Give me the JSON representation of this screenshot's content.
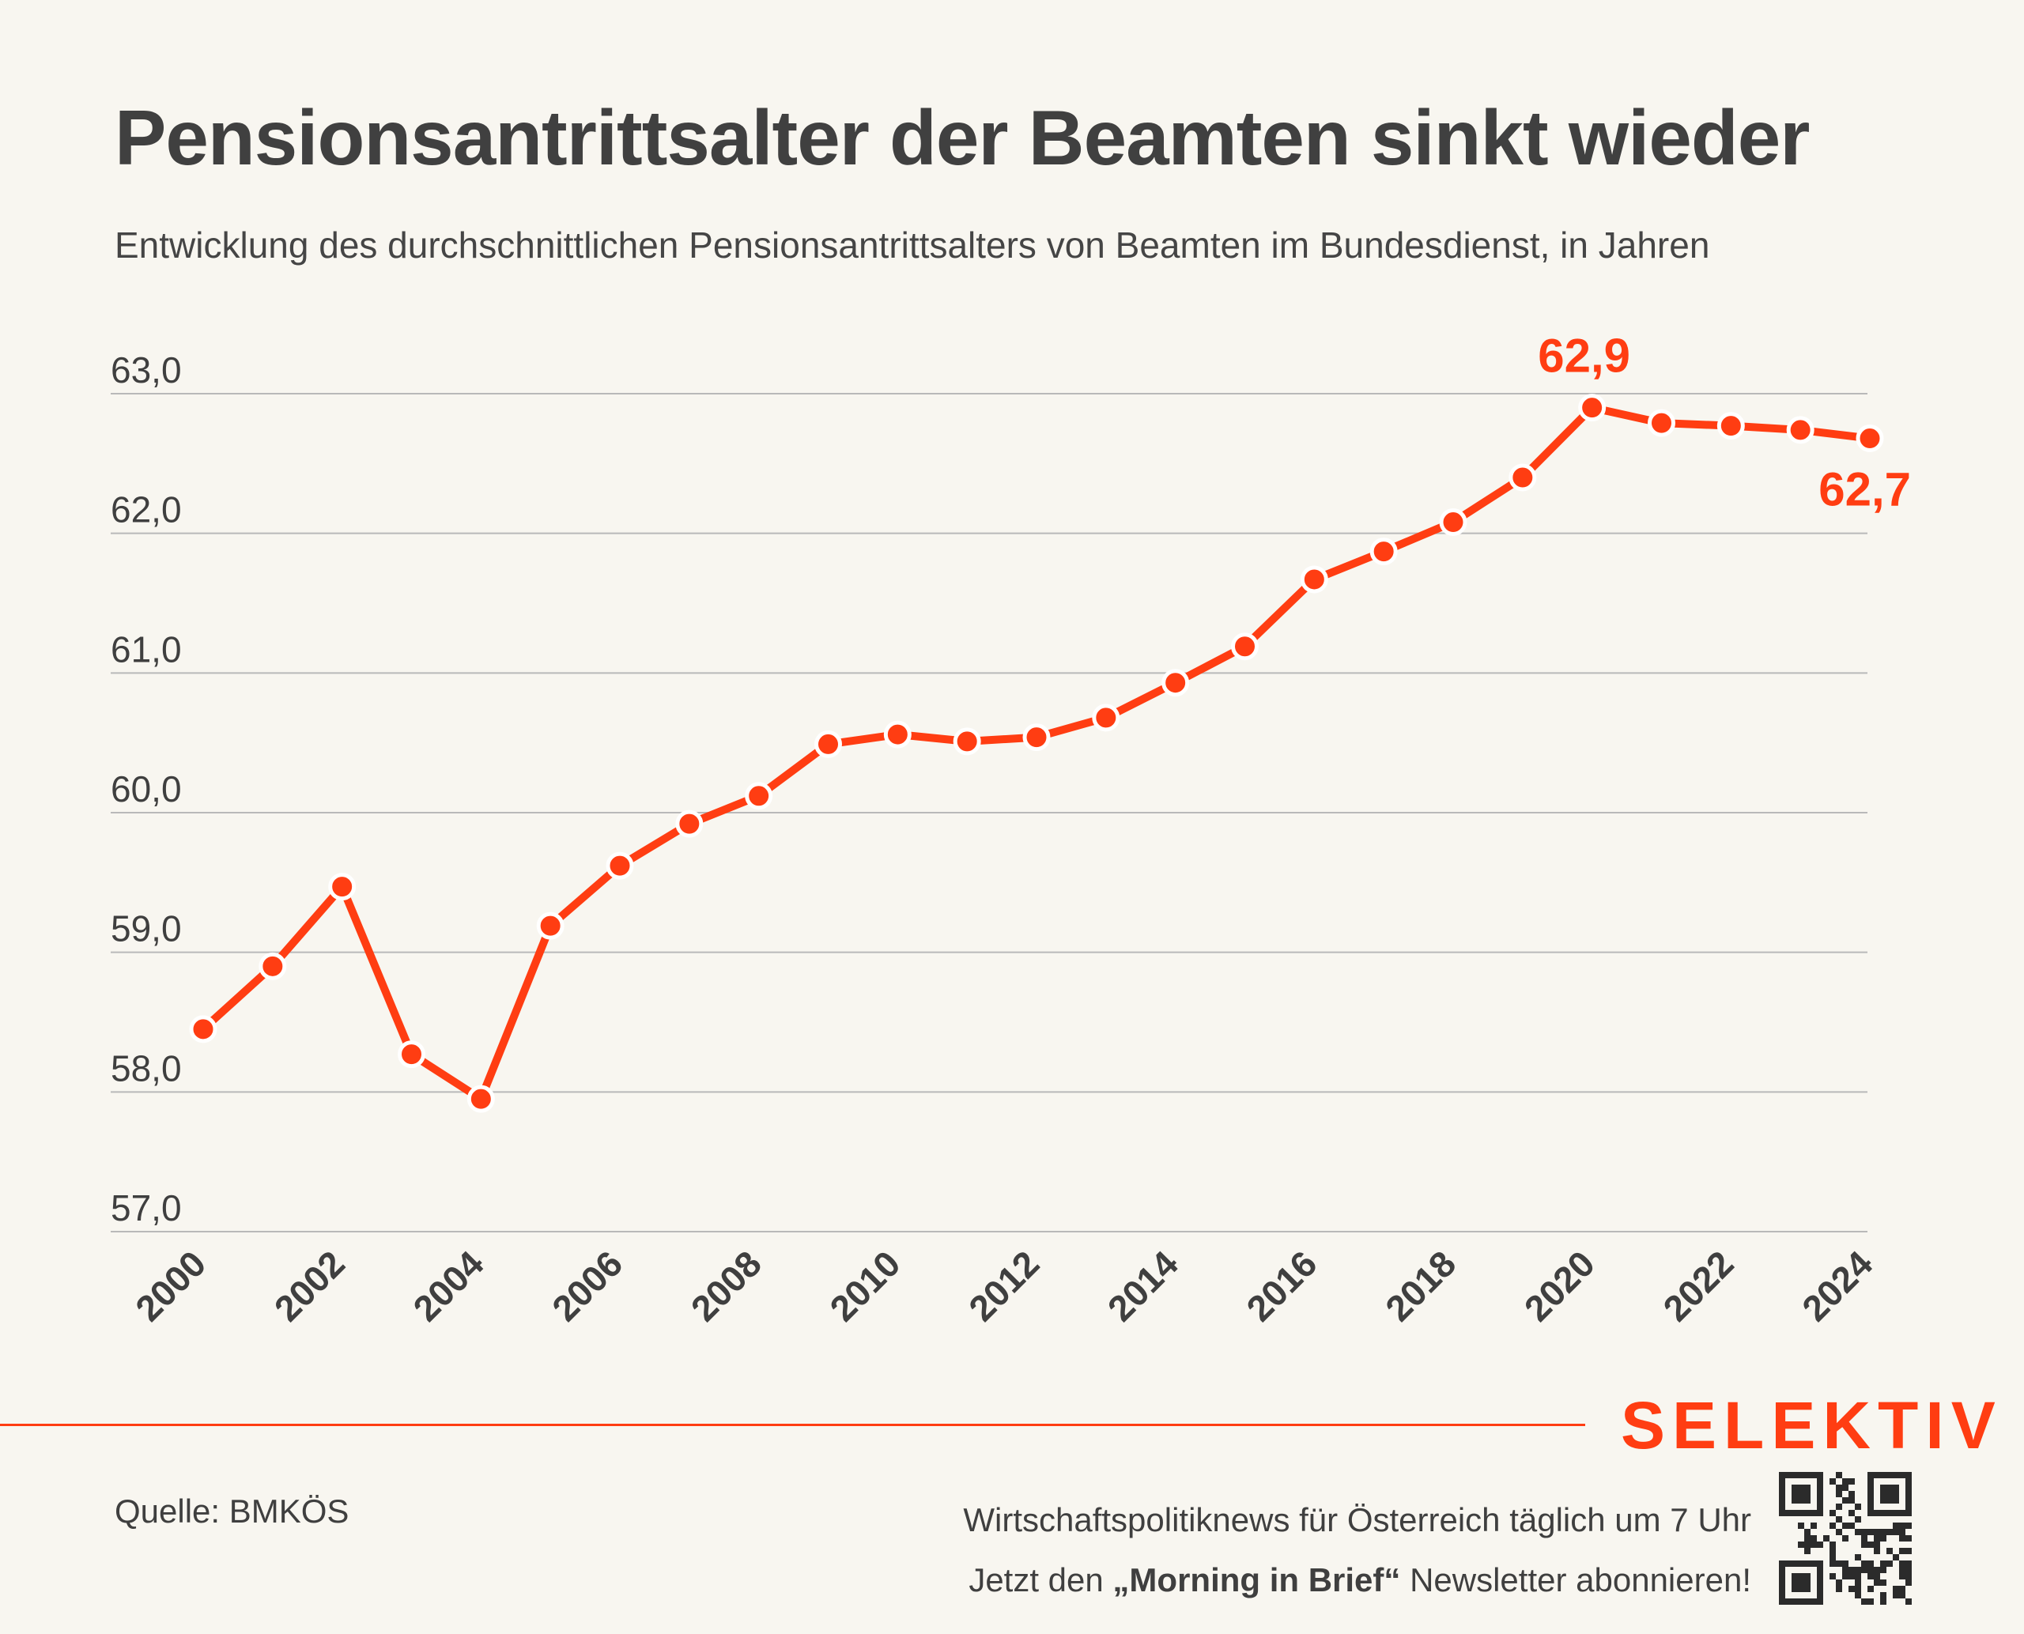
{
  "title": "Pensionsantrittsalter der Beamten sinkt wieder",
  "subtitle": "Entwicklung des durchschnittlichen Pensionsantrittsalters von Beamten im Bundesdienst, in Jahren",
  "colors": {
    "background": "#f8f6f0",
    "accent": "#ff3d12",
    "text": "#3f3f3f",
    "grid": "#b9b9b9"
  },
  "chart_data": {
    "type": "line",
    "title": "Pensionsantrittsalter der Beamten sinkt wieder",
    "subtitle": "Entwicklung des durchschnittlichen Pensionsantrittsalters von Beamten im Bundesdienst, in Jahren",
    "x": [
      2000,
      2001,
      2002,
      2003,
      2004,
      2005,
      2006,
      2007,
      2008,
      2009,
      2010,
      2011,
      2012,
      2013,
      2014,
      2015,
      2016,
      2017,
      2018,
      2019,
      2020,
      2021,
      2022,
      2023,
      2024
    ],
    "series": [
      {
        "color": "#ff3d12",
        "values": [
          58.45,
          58.9,
          59.47,
          58.27,
          57.95,
          59.19,
          59.62,
          59.92,
          60.12,
          60.49,
          60.56,
          60.51,
          60.54,
          60.68,
          60.93,
          61.19,
          61.67,
          61.87,
          62.08,
          62.4,
          62.9,
          62.79,
          62.77,
          62.74,
          62.68
        ]
      }
    ],
    "ylim": [
      57,
      63
    ],
    "yticks": [
      57,
      58,
      59,
      60,
      61,
      62,
      63
    ],
    "ytick_labels": [
      "57,0",
      "58,0",
      "59,0",
      "60,0",
      "61,0",
      "62,0",
      "63,0"
    ],
    "xticks": [
      2000,
      2002,
      2004,
      2006,
      2008,
      2010,
      2012,
      2014,
      2016,
      2018,
      2020,
      2022,
      2024
    ],
    "xtick_labels": [
      "2000",
      "2002",
      "2004",
      "2006",
      "2008",
      "2010",
      "2012",
      "2014",
      "2016",
      "2018",
      "2020",
      "2022",
      "2024"
    ],
    "annotations": [
      {
        "x": 2020,
        "y": 62.9,
        "text": "62,9",
        "position": "above"
      },
      {
        "x": 2024,
        "y": 62.68,
        "text": "62,7",
        "position": "below"
      }
    ],
    "grid": "horizontal"
  },
  "footer": {
    "brand": "SELEKTIV",
    "source": "Quelle: BMKÖS",
    "promo_line1": "Wirtschaftspolitiknews für Österreich täglich um 7 Uhr",
    "promo_line2_pre": "Jetzt den ",
    "promo_line2_bold": "„Morning in Brief“",
    "promo_line2_post": " Newsletter abonnieren!",
    "qr_icon": "qr-code-icon"
  }
}
